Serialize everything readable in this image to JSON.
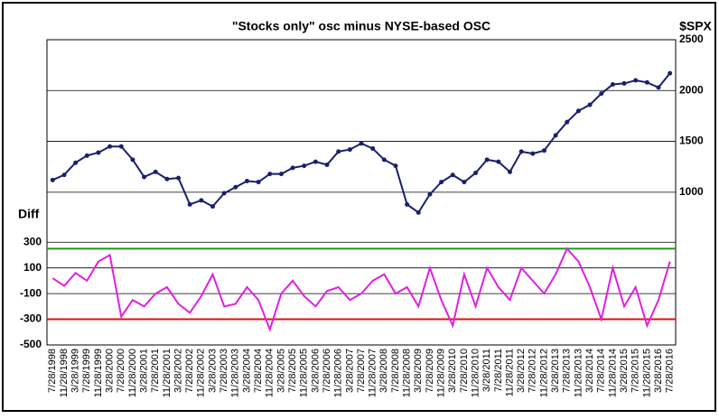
{
  "chart_data": [
    {
      "type": "line",
      "title": "\"Stocks only\" osc minus NYSE-based OSC",
      "y_label": "$SPX",
      "color": "#1a1f6e",
      "values": [
        1120,
        1170,
        1290,
        1360,
        1390,
        1450,
        1450,
        1320,
        1150,
        1200,
        1130,
        1140,
        880,
        920,
        860,
        990,
        1050,
        1110,
        1100,
        1180,
        1180,
        1240,
        1260,
        1300,
        1270,
        1400,
        1420,
        1480,
        1430,
        1320,
        1260,
        880,
        800,
        980,
        1100,
        1170,
        1100,
        1190,
        1320,
        1300,
        1200,
        1400,
        1380,
        1410,
        1560,
        1690,
        1800,
        1860,
        1970,
        2060,
        2070,
        2100,
        2080,
        2030,
        2170
      ],
      "ylim": [
        750,
        2500
      ],
      "yticks": [
        1000,
        1500,
        2000,
        2500
      ],
      "grid": true
    },
    {
      "type": "line",
      "y_label": "Diff",
      "color": "#e020e0",
      "categories": [
        "7/28/1998",
        "11/28/1998",
        "3/28/1999",
        "7/28/1999",
        "11/28/1999",
        "3/28/2000",
        "7/28/2000",
        "11/28/2000",
        "3/28/2001",
        "7/28/2001",
        "11/28/2001",
        "3/28/2002",
        "7/28/2002",
        "11/28/2002",
        "3/28/2003",
        "7/28/2003",
        "11/28/2003",
        "3/28/2004",
        "7/28/2004",
        "11/28/2004",
        "3/28/2005",
        "7/28/2005",
        "11/28/2005",
        "3/28/2006",
        "7/28/2006",
        "11/28/2006",
        "3/28/2007",
        "7/28/2007",
        "11/28/2007",
        "3/28/2008",
        "7/28/2008",
        "11/28/2008",
        "3/28/2009",
        "7/28/2009",
        "11/28/2009",
        "3/28/2010",
        "7/28/2010",
        "11/28/2010",
        "3/28/2011",
        "7/28/2011",
        "11/28/2011",
        "3/28/2012",
        "7/28/2012",
        "11/28/2012",
        "3/28/2013",
        "7/28/2013",
        "11/28/2013",
        "3/28/2014",
        "7/28/2014",
        "11/28/2014",
        "3/28/2015",
        "7/28/2015",
        "11/28/2015",
        "3/28/2016",
        "7/28/2016"
      ],
      "values": [
        20,
        -40,
        60,
        0,
        150,
        200,
        -280,
        -150,
        -200,
        -100,
        -50,
        -180,
        -250,
        -120,
        50,
        -200,
        -180,
        -50,
        -150,
        -380,
        -100,
        0,
        -120,
        -200,
        -80,
        -50,
        -150,
        -100,
        0,
        50,
        -100,
        -50,
        -200,
        100,
        -150,
        -350,
        50,
        -200,
        100,
        -50,
        -150,
        100,
        0,
        -100,
        50,
        250,
        150,
        -50,
        -300,
        100,
        -200,
        -50,
        -350,
        -150,
        150
      ],
      "ylim": [
        -500,
        400
      ],
      "yticks": [
        -500,
        -300,
        -100,
        100,
        300
      ],
      "grid": true,
      "reference_lines": [
        {
          "value": 250,
          "color": "#1a9a1a"
        },
        {
          "value": -300,
          "color": "#e01010"
        }
      ]
    }
  ]
}
